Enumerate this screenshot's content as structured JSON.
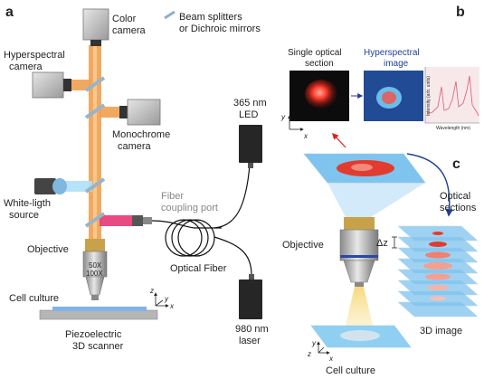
{
  "panels": {
    "a": "a",
    "b": "b",
    "c": "c"
  },
  "labels": {
    "color_camera_1": "Color",
    "color_camera_2": "camera",
    "beam_splitters_1": "Beam splitters",
    "beam_splitters_2": "or Dichroic mirrors",
    "hyperspectral_camera_1": "Hyperspectral",
    "hyperspectral_camera_2": "camera",
    "monochrome_camera_1": "Monochrome",
    "monochrome_camera_2": "camera",
    "white_light_1": "White-ligth",
    "white_light_2": "source",
    "fiber_port_1": "Fiber",
    "fiber_port_2": "coupling port",
    "objective_a": "Objective",
    "mag_50x": "50X",
    "mag_100x": "100X",
    "cell_culture_a": "Cell culture",
    "scanner_1": "Piezoelectric",
    "scanner_2": "3D scanner",
    "optical_fiber": "Optical Fiber",
    "led_1": "365 nm",
    "led_2": "LED",
    "laser_1": "980 nm",
    "laser_2": "laser",
    "single_section_1": "Single optical",
    "single_section_2": "section",
    "hyper_image_1": "Hyperspectral",
    "hyper_image_2": "image",
    "intensity_axis": "Intensity (arb. units)",
    "wavelength_axis": "Wavelength (nm)",
    "optical_sections_1": "Optical",
    "optical_sections_2": "sections",
    "objective_c": "Objective",
    "delta_z": "Δz",
    "image_3d": "3D image",
    "cell_culture_c": "Cell culture"
  },
  "axes": {
    "z": "z",
    "y": "y",
    "x": "x"
  },
  "colors": {
    "beam": "#f0a050",
    "pink_beam": "#e8407a",
    "section_blue": "#7fc4ee",
    "red_sample": "#e23b2f",
    "dark_device": "#262626",
    "arrow_blue": "#1f3f9a",
    "arrow_red": "#e02020"
  }
}
